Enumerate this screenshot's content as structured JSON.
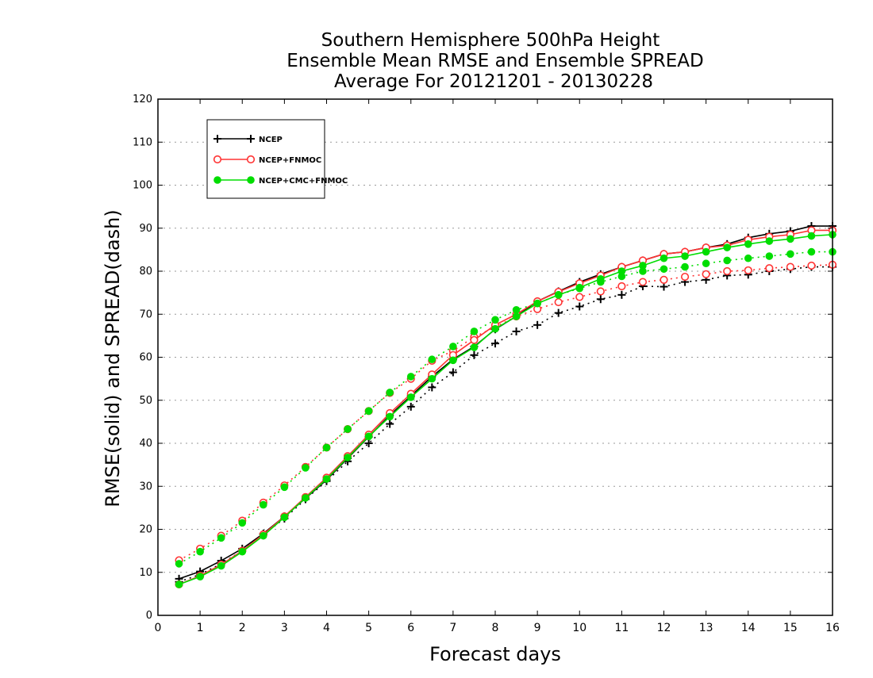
{
  "chart_data": {
    "type": "line",
    "title_lines": [
      "Southern Hemisphere 500hPa Height",
      "Ensemble Mean RMSE and Ensemble SPREAD",
      "Average For 20121201 - 20130228"
    ],
    "xlabel": "Forecast days",
    "ylabel": "RMSE(solid) and SPREAD(dash)",
    "xlim": [
      0,
      16
    ],
    "ylim": [
      0,
      120
    ],
    "xticks": [
      "0",
      "1",
      "2",
      "3",
      "4",
      "5",
      "6",
      "7",
      "8",
      "9",
      "10",
      "11",
      "12",
      "13",
      "14",
      "15",
      "16"
    ],
    "yticks": [
      "0",
      "10",
      "20",
      "30",
      "40",
      "50",
      "60",
      "70",
      "80",
      "90",
      "100",
      "110",
      "120"
    ],
    "grid": true,
    "legend_position": "top-left",
    "x": [
      0.5,
      1,
      1.5,
      2,
      2.5,
      3,
      3.5,
      4,
      4.5,
      5,
      5.5,
      6,
      6.5,
      7,
      7.5,
      8,
      8.5,
      9,
      9.5,
      10,
      10.5,
      11,
      11.5,
      12,
      12.5,
      13,
      13.5,
      14,
      14.5,
      15,
      15.5,
      16
    ],
    "series": [
      {
        "name": "NCEP",
        "color": "#000000",
        "marker": "plus",
        "rmse": [
          8.5,
          10.2,
          12.7,
          15.5,
          19,
          23,
          27.2,
          31.5,
          36.5,
          41.5,
          46.5,
          51,
          55.5,
          59.5,
          62.5,
          66.5,
          69.5,
          73,
          75.3,
          77.5,
          79.3,
          81,
          82.5,
          84,
          84.5,
          85.5,
          86.3,
          87.8,
          88.7,
          89.3,
          90.5,
          90.5
        ],
        "spread": [
          7.8,
          9.5,
          12,
          15,
          18.8,
          22.5,
          27,
          31.2,
          35.8,
          40,
          44.5,
          48.5,
          53,
          56.5,
          60.5,
          63.2,
          66,
          67.5,
          70.3,
          71.8,
          73.5,
          74.5,
          76.5,
          76.4,
          77.5,
          78,
          79,
          79.2,
          80,
          80.5,
          81,
          81
        ]
      },
      {
        "name": "NCEP+FNMOC",
        "color": "#ff3333",
        "marker": "circle-open",
        "rmse": [
          7.2,
          9.2,
          11.8,
          15,
          18.8,
          23,
          27.5,
          32,
          37,
          42,
          47,
          51.5,
          56,
          60.5,
          64,
          67.5,
          70,
          73,
          75.2,
          77.2,
          79,
          81,
          82.5,
          84,
          84.5,
          85.5,
          86,
          87.3,
          88,
          88.5,
          89.5,
          89.5
        ],
        "spread": [
          12.8,
          15.5,
          18.5,
          22,
          26.2,
          30.2,
          34.5,
          39,
          43.3,
          47.5,
          51.7,
          55,
          59.2,
          61.5,
          64.7,
          67,
          69.5,
          71.2,
          72.8,
          74,
          75.3,
          76.5,
          77.5,
          78,
          78.7,
          79.3,
          80,
          80.2,
          80.7,
          81,
          81.3,
          81.5
        ]
      },
      {
        "name": "NCEP+CMC+FNMOC",
        "color": "#00dd00",
        "marker": "circle-filled",
        "rmse": [
          7.2,
          9,
          11.5,
          14.8,
          18.5,
          22.8,
          27.3,
          31.7,
          36.7,
          41.6,
          46.2,
          50.7,
          55,
          59.3,
          62.3,
          66.6,
          69.5,
          72.5,
          74.5,
          76.2,
          78.2,
          80,
          81.3,
          83,
          83.5,
          84.5,
          85.5,
          86.3,
          87,
          87.5,
          88.2,
          88.5
        ],
        "spread": [
          12,
          14.8,
          18,
          21.5,
          25.7,
          29.8,
          34.3,
          39,
          43.3,
          47.5,
          51.8,
          55.5,
          59.5,
          62.5,
          66,
          68.7,
          71,
          72.5,
          74.5,
          76,
          77.5,
          78.8,
          80,
          80.5,
          81,
          81.8,
          82.5,
          83,
          83.5,
          84,
          84.5,
          84.5
        ]
      }
    ]
  }
}
